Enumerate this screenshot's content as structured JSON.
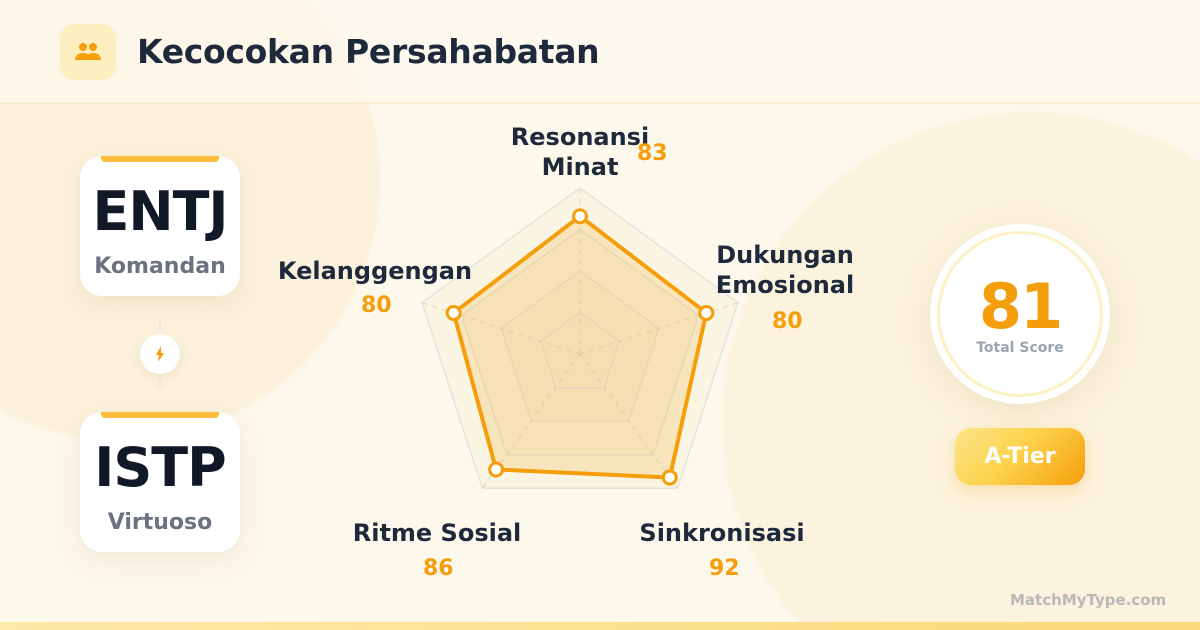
{
  "header": {
    "title": "Kecocokan Persahabatan",
    "icon": "users-icon"
  },
  "types": [
    {
      "code": "ENTJ",
      "nickname": "Komandan"
    },
    {
      "code": "ISTP",
      "nickname": "Virtuoso"
    }
  ],
  "connector_icon": "lightning-bolt-icon",
  "chart_data": {
    "type": "radar",
    "categories": [
      "Resonansi Minat",
      "Dukungan Emosional",
      "Sinkronisasi",
      "Ritme Sosial",
      "Kelanggengan"
    ],
    "values": [
      83,
      80,
      92,
      86,
      80
    ],
    "range": [
      0,
      100
    ],
    "grid_levels": [
      25,
      50,
      75,
      100
    ],
    "color": "#f59e0b"
  },
  "labels": {
    "c0a": "Resonansi",
    "c0b": "Minat",
    "c1a": "Dukungan",
    "c1b": "Emosional",
    "c2": "Sinkronisasi",
    "c3": "Ritme Sosial",
    "c4": "Kelanggengan",
    "v0": "83",
    "v1": "80",
    "v2": "92",
    "v3": "86",
    "v4": "80"
  },
  "score": {
    "value": "81",
    "label": "Total Score",
    "tier": "A-Tier"
  },
  "brand": "MatchMyType.com",
  "colors": {
    "accent": "#f59e0b",
    "text": "#1e293b",
    "background": "#fdf8ec"
  }
}
